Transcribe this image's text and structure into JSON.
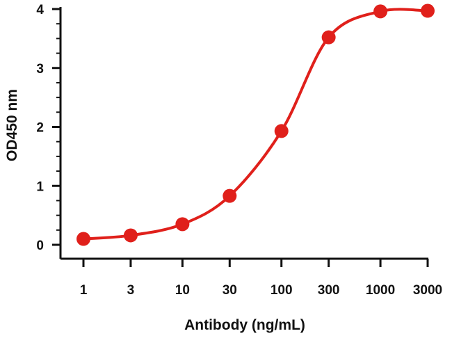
{
  "chart_data": {
    "type": "line",
    "title": "",
    "xlabel": "Antibody (ng/mL)",
    "ylabel": "OD450 nm",
    "x_scale": "log",
    "xlim": [
      1,
      3000
    ],
    "ylim": [
      0,
      4
    ],
    "x_ticks": [
      1,
      3,
      10,
      30,
      100,
      300,
      1000,
      3000
    ],
    "x_tick_labels": [
      "1",
      "3",
      "10",
      "30",
      "100",
      "300",
      "1000",
      "3000"
    ],
    "y_ticks": [
      0,
      1,
      2,
      3,
      4
    ],
    "y_tick_labels": [
      "0",
      "1",
      "2",
      "3",
      "4"
    ],
    "grid": false,
    "legend": "none",
    "series": [
      {
        "color": "#e0201b",
        "x": [
          1,
          3,
          10,
          30,
          100,
          300,
          1000,
          3000
        ],
        "y": [
          0.1,
          0.16,
          0.35,
          0.83,
          1.93,
          3.52,
          3.96,
          3.97
        ]
      }
    ]
  }
}
